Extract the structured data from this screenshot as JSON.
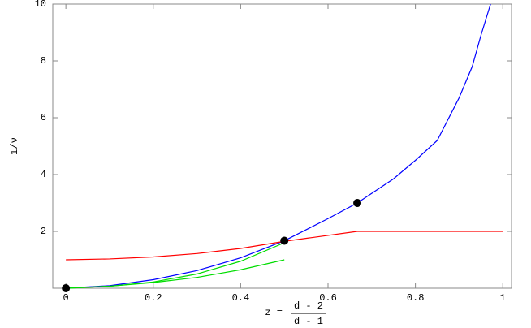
{
  "chart_data": {
    "type": "line",
    "x_label": {
      "prefix": "z  =",
      "numerator": "d - 2",
      "denominator": "d - 1"
    },
    "y_label": "1/ν",
    "xlim": [
      -0.03,
      1.02
    ],
    "ylim": [
      0,
      10
    ],
    "xticks": [
      0,
      0.2,
      0.4,
      0.6,
      0.8,
      1
    ],
    "yticks": [
      2,
      4,
      6,
      8,
      10
    ],
    "series": [
      {
        "color": "#0000ff",
        "x": [
          0,
          0.1,
          0.2,
          0.3,
          0.4,
          0.5,
          0.6,
          0.667,
          0.75,
          0.8,
          0.85,
          0.9,
          0.93,
          0.95,
          0.972
        ],
        "values": [
          0,
          0.09,
          0.3,
          0.62,
          1.07,
          1.67,
          2.45,
          3,
          3.85,
          4.5,
          5.2,
          6.7,
          7.8,
          8.9,
          10
        ]
      },
      {
        "color": "#ff0000",
        "x": [
          0,
          0.1,
          0.2,
          0.3,
          0.4,
          0.5,
          0.667,
          1
        ],
        "values": [
          1,
          1.03,
          1.1,
          1.22,
          1.4,
          1.65,
          2,
          2
        ]
      },
      {
        "color": "#00dd00",
        "x": [
          0,
          0.1,
          0.2,
          0.3,
          0.4,
          0.5
        ],
        "values": [
          0,
          0.07,
          0.22,
          0.5,
          0.95,
          1.6
        ]
      },
      {
        "color": "#00dd00",
        "x": [
          0,
          0.1,
          0.2,
          0.3,
          0.4,
          0.5
        ],
        "values": [
          0,
          0.07,
          0.2,
          0.38,
          0.65,
          1.0
        ]
      }
    ],
    "points": {
      "color": "#000000",
      "x": [
        0,
        0.5,
        0.667
      ],
      "values": [
        0,
        1.67,
        3
      ]
    }
  }
}
